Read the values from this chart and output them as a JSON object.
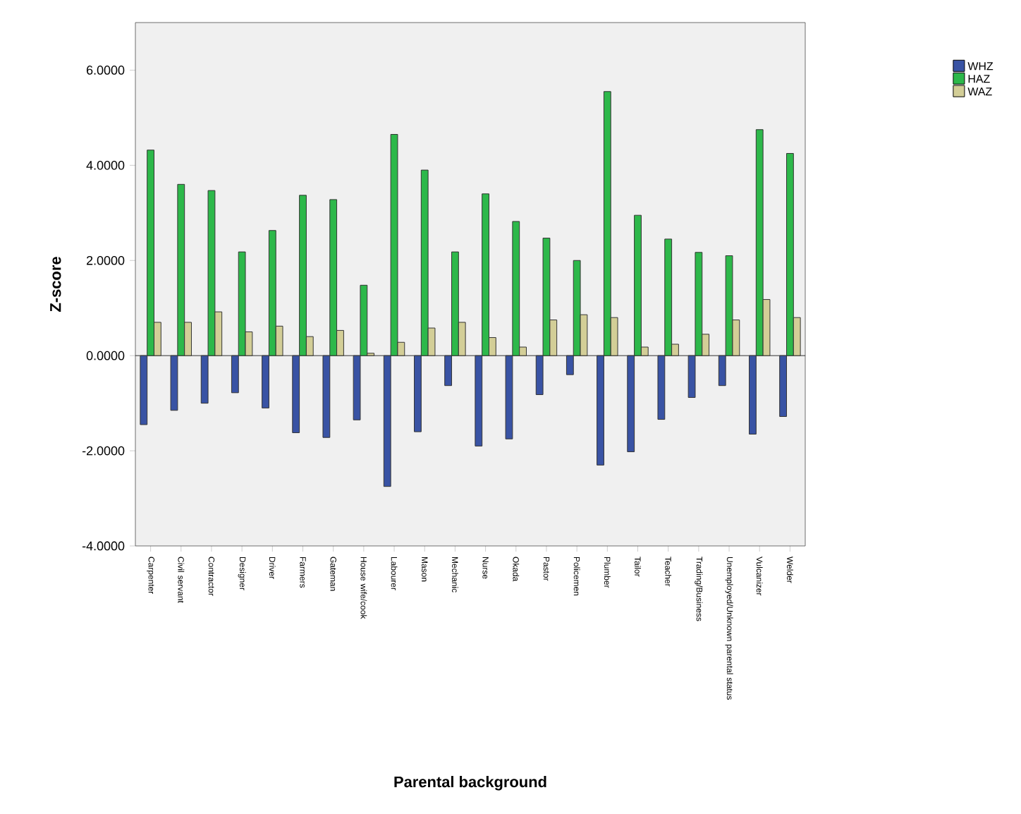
{
  "chart_data": {
    "type": "bar",
    "xlabel": "Parental background",
    "ylabel": "Z-score",
    "categories": [
      "Carpenter",
      "Civil servant",
      "Contractor",
      "Designer",
      "Driver",
      "Farmers",
      "Gateman",
      "House wife/cook",
      "Labourer",
      "Mason",
      "Mechanic",
      "Nurse",
      "Okada",
      "Pastor",
      "Policemen",
      "Plumber",
      "Tailor",
      "Teacher",
      "Trading/Business",
      "Unemployed/Unknown parental status",
      "Vulcanizer",
      "Welder"
    ],
    "series": [
      {
        "name": "WHZ",
        "color": "#3953a4",
        "values": [
          -1.45,
          -1.15,
          -1.0,
          -0.78,
          -1.1,
          -1.62,
          -1.72,
          -1.35,
          -2.75,
          -1.6,
          -0.63,
          -1.9,
          -1.75,
          -0.82,
          -0.4,
          -2.3,
          -2.02,
          -1.34,
          -0.88,
          -0.63,
          -1.65,
          -1.28
        ]
      },
      {
        "name": "HAZ",
        "color": "#2db84a",
        "values": [
          4.32,
          3.6,
          3.47,
          2.18,
          2.63,
          3.37,
          3.28,
          1.48,
          4.65,
          3.9,
          2.18,
          3.4,
          2.82,
          2.47,
          2.0,
          5.55,
          2.95,
          2.45,
          2.17,
          2.1,
          4.75,
          4.25
        ]
      },
      {
        "name": "WAZ",
        "color": "#d3ce97",
        "values": [
          0.7,
          0.7,
          0.92,
          0.5,
          0.62,
          0.4,
          0.53,
          0.05,
          0.28,
          0.58,
          0.7,
          0.38,
          0.18,
          0.75,
          0.86,
          0.8,
          0.18,
          0.24,
          0.45,
          0.75,
          1.18,
          0.8
        ]
      }
    ],
    "ylim": [
      -4,
      7
    ],
    "yticks": [
      {
        "value": -4,
        "label": "-4.0000"
      },
      {
        "value": -2,
        "label": "-2.0000"
      },
      {
        "value": 0,
        "label": "0.0000"
      },
      {
        "value": 2,
        "label": "2.0000"
      },
      {
        "value": 4,
        "label": "4.0000"
      },
      {
        "value": 6,
        "label": "6.0000"
      }
    ],
    "legend": "top right"
  }
}
